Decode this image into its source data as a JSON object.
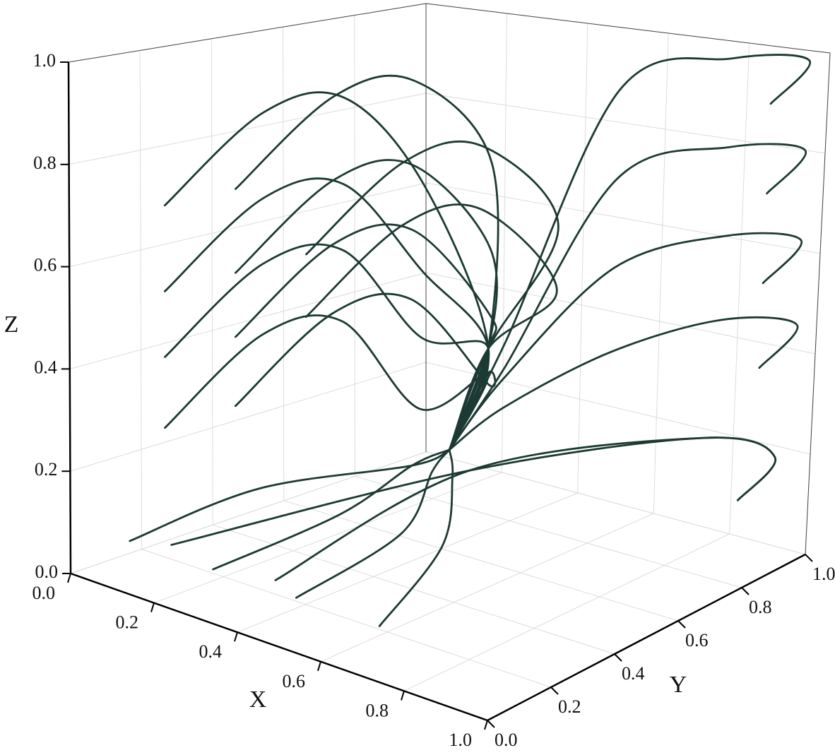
{
  "chart_data": {
    "type": "streamline3d",
    "xlabel": "X",
    "ylabel": "Y",
    "zlabel": "Z",
    "xlim": [
      0,
      1
    ],
    "ylim": [
      0,
      1
    ],
    "zlim": [
      0,
      1
    ],
    "xticks": [
      {
        "value": 0,
        "label": "0.0"
      },
      0.2,
      0.4,
      0.6,
      0.8,
      {
        "value": 1,
        "label": "1.0"
      }
    ],
    "yticks": [
      {
        "value": 0,
        "label": "0.0"
      },
      0.2,
      0.4,
      0.6,
      0.8,
      {
        "value": 1,
        "label": "1.0"
      }
    ],
    "zticks": [
      {
        "value": 0,
        "label": "0.0"
      },
      0.2,
      0.4,
      0.6,
      0.8,
      {
        "value": 1,
        "label": "1.0"
      }
    ],
    "grid": true,
    "color": "#1c3a33",
    "series": [
      {
        "x": [
          0.1,
          0.25,
          0.4,
          0.55,
          0.55,
          0.5
        ],
        "y": [
          0.15,
          0.25,
          0.3,
          0.35,
          0.55,
          0.5
        ],
        "z": [
          0.72,
          0.92,
          0.97,
          0.82,
          0.45,
          0.25
        ]
      },
      {
        "x": [
          0.1,
          0.25,
          0.4,
          0.55,
          0.55,
          0.5
        ],
        "y": [
          0.35,
          0.45,
          0.5,
          0.55,
          0.55,
          0.5
        ],
        "z": [
          0.72,
          0.92,
          0.97,
          0.82,
          0.45,
          0.25
        ]
      },
      {
        "x": [
          0.1,
          0.25,
          0.4,
          0.55,
          0.55,
          0.5
        ],
        "y": [
          0.15,
          0.25,
          0.3,
          0.35,
          0.55,
          0.5
        ],
        "z": [
          0.55,
          0.75,
          0.8,
          0.65,
          0.45,
          0.25
        ]
      },
      {
        "x": [
          0.1,
          0.25,
          0.4,
          0.55,
          0.55,
          0.5
        ],
        "y": [
          0.35,
          0.45,
          0.5,
          0.55,
          0.55,
          0.5
        ],
        "z": [
          0.55,
          0.75,
          0.8,
          0.65,
          0.45,
          0.25
        ]
      },
      {
        "x": [
          0.1,
          0.25,
          0.4,
          0.55,
          0.55,
          0.5
        ],
        "y": [
          0.55,
          0.65,
          0.7,
          0.75,
          0.55,
          0.5
        ],
        "z": [
          0.55,
          0.75,
          0.8,
          0.65,
          0.45,
          0.25
        ]
      },
      {
        "x": [
          0.1,
          0.25,
          0.4,
          0.55,
          0.55,
          0.5
        ],
        "y": [
          0.15,
          0.25,
          0.3,
          0.35,
          0.55,
          0.5
        ],
        "z": [
          0.42,
          0.62,
          0.67,
          0.52,
          0.45,
          0.25
        ]
      },
      {
        "x": [
          0.1,
          0.25,
          0.4,
          0.55,
          0.55,
          0.5
        ],
        "y": [
          0.35,
          0.45,
          0.5,
          0.55,
          0.55,
          0.5
        ],
        "z": [
          0.42,
          0.62,
          0.67,
          0.52,
          0.45,
          0.25
        ]
      },
      {
        "x": [
          0.1,
          0.25,
          0.4,
          0.55,
          0.55,
          0.5
        ],
        "y": [
          0.55,
          0.65,
          0.7,
          0.75,
          0.55,
          0.5
        ],
        "z": [
          0.42,
          0.62,
          0.67,
          0.52,
          0.45,
          0.25
        ]
      },
      {
        "x": [
          0.1,
          0.25,
          0.4,
          0.55,
          0.55,
          0.5
        ],
        "y": [
          0.15,
          0.25,
          0.3,
          0.35,
          0.55,
          0.5
        ],
        "z": [
          0.28,
          0.48,
          0.53,
          0.38,
          0.4,
          0.25
        ]
      },
      {
        "x": [
          0.1,
          0.25,
          0.4,
          0.55,
          0.55,
          0.5
        ],
        "y": [
          0.35,
          0.45,
          0.5,
          0.55,
          0.55,
          0.5
        ],
        "z": [
          0.28,
          0.48,
          0.53,
          0.38,
          0.4,
          0.25
        ]
      },
      {
        "x": [
          0.5,
          0.55,
          0.65,
          0.8,
          0.95,
          0.9
        ],
        "y": [
          0.5,
          0.6,
          0.8,
          0.95,
          1,
          0.95
        ],
        "z": [
          0.25,
          0.45,
          0.93,
          0.98,
          0.98,
          0.9
        ]
      },
      {
        "x": [
          0.5,
          0.55,
          0.65,
          0.8,
          0.95,
          0.9
        ],
        "y": [
          0.5,
          0.6,
          0.8,
          0.95,
          1,
          0.95
        ],
        "z": [
          0.25,
          0.4,
          0.75,
          0.8,
          0.8,
          0.72
        ]
      },
      {
        "x": [
          0.5,
          0.55,
          0.65,
          0.8,
          0.95,
          0.9
        ],
        "y": [
          0.5,
          0.6,
          0.8,
          0.95,
          1,
          0.95
        ],
        "z": [
          0.25,
          0.38,
          0.57,
          0.62,
          0.62,
          0.54
        ]
      },
      {
        "x": [
          0.5,
          0.55,
          0.65,
          0.8,
          0.95,
          0.9
        ],
        "y": [
          0.5,
          0.6,
          0.8,
          0.95,
          1,
          0.95
        ],
        "z": [
          0.25,
          0.32,
          0.4,
          0.45,
          0.45,
          0.37
        ]
      },
      {
        "x": [
          0.1,
          0.2,
          0.45,
          0.5
        ],
        "y": [
          0.05,
          0.3,
          0.45,
          0.5
        ],
        "z": [
          0.08,
          0.15,
          0.22,
          0.25
        ]
      },
      {
        "x": [
          0.3,
          0.4,
          0.45,
          0.5
        ],
        "y": [
          0.05,
          0.3,
          0.45,
          0.5
        ],
        "z": [
          0.08,
          0.15,
          0.22,
          0.25
        ]
      },
      {
        "x": [
          0.5,
          0.55,
          0.5,
          0.5
        ],
        "y": [
          0.05,
          0.3,
          0.45,
          0.5
        ],
        "z": [
          0.08,
          0.15,
          0.22,
          0.25
        ]
      },
      {
        "x": [
          0.7,
          0.65,
          0.55,
          0.5
        ],
        "y": [
          0.05,
          0.3,
          0.45,
          0.5
        ],
        "z": [
          0.08,
          0.15,
          0.22,
          0.25
        ]
      },
      {
        "x": [
          0.2,
          0.55,
          0.85,
          0.95,
          0.9
        ],
        "y": [
          0.05,
          0.5,
          0.85,
          0.95,
          0.9
        ],
        "z": [
          0.1,
          0.22,
          0.25,
          0.2,
          0.12
        ]
      },
      {
        "x": [
          0.45,
          0.55,
          0.85,
          0.95,
          0.9
        ],
        "y": [
          0.05,
          0.5,
          0.85,
          0.95,
          0.9
        ],
        "z": [
          0.1,
          0.22,
          0.25,
          0.2,
          0.12
        ]
      }
    ]
  }
}
